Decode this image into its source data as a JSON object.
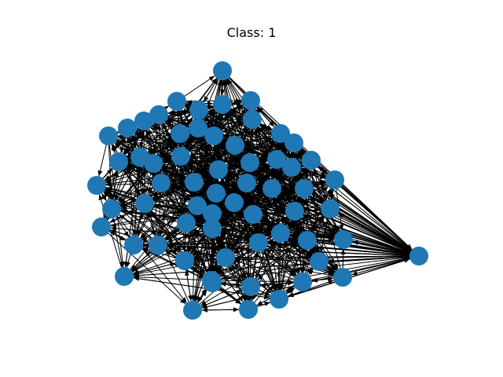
{
  "title": "Class: 1",
  "colors": {
    "node": "#1f77b4",
    "edge": "#000000"
  },
  "graph": {
    "directed": true,
    "node_count": 63
  }
}
